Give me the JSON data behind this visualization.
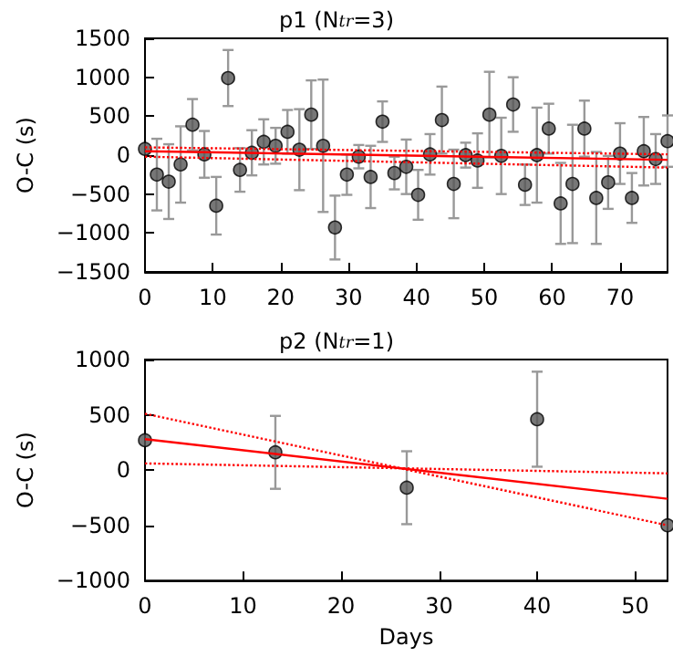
{
  "chart_data": [
    {
      "type": "scatter",
      "title": "p1 (N$_{tr}$=3)",
      "ylabel": "O-C (s)",
      "xlim": [
        0,
        77
      ],
      "xticks": [
        0,
        10,
        20,
        30,
        40,
        50,
        60,
        70
      ],
      "ylim": [
        -1500,
        1500
      ],
      "yticks": [
        {
          "value": -1500,
          "label": "−1500"
        },
        {
          "value": -1000,
          "label": "−1000"
        },
        {
          "value": -500,
          "label": "−500"
        },
        0,
        500,
        1000,
        1500
      ],
      "series": [
        {
          "marker": "circle",
          "color": "#555555",
          "x": [
            0,
            1.75,
            3.5,
            5.25,
            7,
            8.75,
            10.5,
            12.25,
            14,
            15.75,
            17.5,
            19.25,
            21,
            22.75,
            24.5,
            26.25,
            28,
            29.75,
            31.5,
            33.25,
            35,
            36.75,
            38.5,
            40.25,
            42,
            43.75,
            45.5,
            47.25,
            49,
            50.75,
            52.5,
            54.25,
            56,
            57.75,
            59.5,
            61.25,
            63,
            64.75,
            66.5,
            68.25,
            70,
            71.75,
            73.5,
            75.25,
            77
          ],
          "values": [
            80,
            -250,
            -340,
            -120,
            390,
            10,
            -650,
            990,
            -190,
            30,
            170,
            120,
            300,
            70,
            520,
            120,
            -930,
            -250,
            -20,
            -280,
            430,
            -230,
            -150,
            -510,
            10,
            450,
            -370,
            0,
            -70,
            520,
            -10,
            650,
            -380,
            0,
            340,
            -620,
            -370,
            340,
            -550,
            -350,
            20,
            -550,
            50,
            -50,
            180
          ],
          "errors": [
            null,
            460,
            480,
            490,
            330,
            300,
            370,
            360,
            280,
            290,
            290,
            230,
            280,
            520,
            440,
            850,
            410,
            260,
            150,
            400,
            260,
            210,
            350,
            320,
            260,
            430,
            440,
            160,
            350,
            550,
            490,
            350,
            260,
            610,
            320,
            520,
            760,
            360,
            590,
            340,
            390,
            320,
            440,
            320,
            330
          ]
        },
        {
          "type": "line",
          "marker": "none",
          "line_style": "solid",
          "color": "#ff0000",
          "x": [
            0,
            77
          ],
          "values": [
            50,
            -60
          ]
        },
        {
          "type": "line",
          "marker": "none",
          "line_style": "dotted",
          "color": "#ff0000",
          "x": [
            0,
            77
          ],
          "values": [
            100,
            10
          ]
        },
        {
          "type": "line",
          "marker": "none",
          "line_style": "dotted",
          "color": "#ff0000",
          "x": [
            0,
            77
          ],
          "values": [
            -20,
            -160
          ]
        }
      ]
    },
    {
      "type": "scatter",
      "title": "p2 (N$_{tr}$=1)",
      "xlabel": "Days",
      "ylabel": "O-C (s)",
      "xlim": [
        0,
        53.3
      ],
      "xticks": [
        0,
        10,
        20,
        30,
        40,
        50
      ],
      "ylim": [
        -1000,
        1000
      ],
      "yticks": [
        {
          "value": -1000,
          "label": "−1000"
        },
        {
          "value": -500,
          "label": "−500"
        },
        0,
        500,
        1000
      ],
      "series": [
        {
          "marker": "circle",
          "color": "#555555",
          "x": [
            0,
            13.3,
            26.7,
            40,
            53.3
          ],
          "values": [
            270,
            160,
            -160,
            460,
            -500
          ],
          "errors": [
            null,
            330,
            330,
            430,
            null
          ]
        },
        {
          "type": "line",
          "marker": "none",
          "line_style": "solid",
          "color": "#ff0000",
          "x": [
            0,
            53.3
          ],
          "values": [
            280,
            -260
          ]
        },
        {
          "type": "line",
          "marker": "none",
          "line_style": "dotted",
          "color": "#ff0000",
          "x": [
            0,
            53.3
          ],
          "values": [
            510,
            -500
          ]
        },
        {
          "type": "line",
          "marker": "none",
          "line_style": "dotted",
          "color": "#ff0000",
          "x": [
            0,
            53.3
          ],
          "values": [
            60,
            -30
          ]
        }
      ]
    }
  ]
}
